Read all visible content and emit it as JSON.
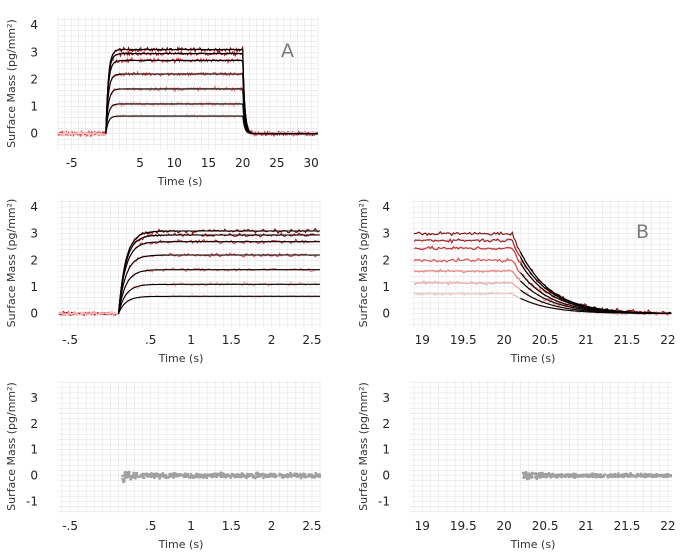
{
  "panel_labels": {
    "a": "A",
    "b": "B"
  },
  "colors": {
    "fit": "#000000",
    "residual": "#a0a0a0",
    "grid": "#e4e4e4",
    "gray_fit": "#c8c8c8",
    "series": [
      "#7a0000",
      "#a30d12",
      "#c81f24",
      "#e0474a",
      "#ee7b7d",
      "#f5aaab",
      "#f8cfd0",
      "#b81418"
    ]
  },
  "chart_data": [
    {
      "panel": "A",
      "type": "line",
      "title": "",
      "xlabel": "Time (s)",
      "ylabel": "Surface Mass (pg/mm²)",
      "xlim": [
        -7,
        31
      ],
      "ylim": [
        -0.6,
        4.3
      ],
      "x_ticks": [
        -5,
        5,
        10,
        15,
        20,
        25,
        30
      ],
      "x_tick_labels": [
        "-5",
        "5",
        "10",
        "15",
        "20",
        "25",
        "30"
      ],
      "y_ticks": [
        0,
        1,
        2,
        3,
        4
      ],
      "y_tick_labels": [
        "0",
        "1",
        "2",
        "3",
        "4"
      ],
      "grid": true,
      "association_start": 0,
      "dissociation_start": 20,
      "series": [
        {
          "plateau": 3.1
        },
        {
          "plateau": 2.95
        },
        {
          "plateau": 2.7
        },
        {
          "plateau": 2.2
        },
        {
          "plateau": 1.65
        },
        {
          "plateau": 1.1
        },
        {
          "plateau": 0.65
        }
      ]
    },
    {
      "panel": "association-zoom",
      "type": "line",
      "title": "",
      "xlabel": "Time (s)",
      "ylabel": "Surface Mass (pg/mm²)",
      "xlim": [
        -0.65,
        2.6
      ],
      "ylim": [
        -0.5,
        4.3
      ],
      "x_ticks": [
        -0.5,
        0.5,
        1,
        1.5,
        2,
        2.5
      ],
      "x_tick_labels": [
        "-.5",
        ".5",
        "1",
        "1.5",
        "2",
        "2.5"
      ],
      "y_ticks": [
        0,
        1,
        2,
        3,
        4
      ],
      "y_tick_labels": [
        "0",
        "1",
        "2",
        "3",
        "4"
      ],
      "grid": true,
      "series": [
        {
          "plateau": 3.1
        },
        {
          "plateau": 2.95
        },
        {
          "plateau": 2.7
        },
        {
          "plateau": 2.2
        },
        {
          "plateau": 1.65
        },
        {
          "plateau": 1.1
        },
        {
          "plateau": 0.65
        }
      ]
    },
    {
      "panel": "B",
      "type": "line",
      "title": "",
      "xlabel": "Time (s)",
      "ylabel": "Surface Mass (pg/mm²)",
      "xlim": [
        18.85,
        22.05
      ],
      "ylim": [
        -0.5,
        4.3
      ],
      "x_ticks": [
        19,
        19.5,
        20,
        20.5,
        21,
        21.5,
        22
      ],
      "x_tick_labels": [
        "19",
        "19.5",
        "20",
        "20.5",
        "21",
        "21.5",
        "22"
      ],
      "y_ticks": [
        0,
        1,
        2,
        3,
        4
      ],
      "y_tick_labels": [
        "0",
        "1",
        "2",
        "3",
        "4"
      ],
      "grid": true,
      "dissociation_start": 20.1,
      "series": [
        {
          "plateau": 3.0
        },
        {
          "plateau": 2.75
        },
        {
          "plateau": 2.45
        },
        {
          "plateau": 2.0
        },
        {
          "plateau": 1.6
        },
        {
          "plateau": 1.15
        },
        {
          "plateau": 0.75
        }
      ]
    },
    {
      "panel": "association-residuals",
      "type": "scatter",
      "title": "",
      "xlabel": "Time (s)",
      "ylabel": "Surface Mass (pg/mm²)",
      "xlim": [
        -0.65,
        2.6
      ],
      "ylim": [
        -1.45,
        3.7
      ],
      "x_ticks": [
        -0.5,
        0.5,
        1,
        1.5,
        2,
        2.5
      ],
      "x_tick_labels": [
        "-.5",
        ".5",
        "1",
        "1.5",
        "2",
        "2.5"
      ],
      "y_ticks": [
        -1,
        0,
        1,
        2,
        3
      ],
      "y_tick_labels": [
        "-1",
        "0",
        "1",
        "2",
        "3"
      ],
      "grid": true,
      "x_range": [
        0.15,
        2.6
      ],
      "noise": 0.08
    },
    {
      "panel": "dissociation-residuals",
      "type": "scatter",
      "title": "",
      "xlabel": "Time (s)",
      "ylabel": "Surface Mass (pg/mm²)",
      "xlim": [
        18.85,
        22.05
      ],
      "ylim": [
        -1.45,
        3.7
      ],
      "x_ticks": [
        19,
        19.5,
        20,
        20.5,
        21,
        21.5,
        22
      ],
      "x_tick_labels": [
        "19",
        "19.5",
        "20",
        "20.5",
        "21",
        "21.5",
        "22"
      ],
      "y_ticks": [
        -1,
        0,
        1,
        2,
        3
      ],
      "y_tick_labels": [
        "-1",
        "0",
        "1",
        "2",
        "3"
      ],
      "grid": true,
      "x_range": [
        20.23,
        22.05
      ],
      "noise": 0.06
    }
  ]
}
